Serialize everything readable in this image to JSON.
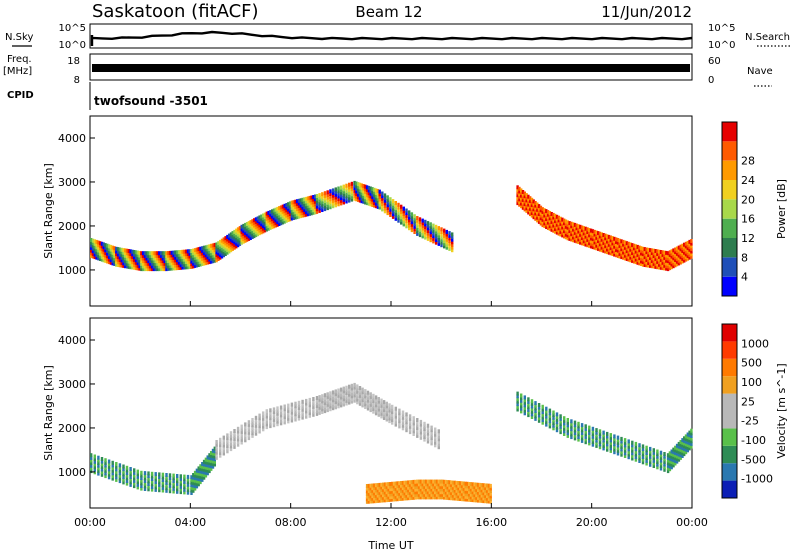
{
  "header": {
    "station": "Saskatoon (fitACF)",
    "beam": "Beam 12",
    "date": "11/Jun/2012"
  },
  "colors": {
    "power_scale": [
      "#0000ff",
      "#1f4fb8",
      "#2e7d4f",
      "#4fae50",
      "#a8d84a",
      "#f0d020",
      "#ff9a00",
      "#ff5a00",
      "#e60000"
    ],
    "velocity_scale": [
      "#0c1fb5",
      "#2a78b0",
      "#2e8c55",
      "#59c04a",
      "#b8b8b8",
      "#b8b8b8",
      "#f0a020",
      "#ff7a00",
      "#ff3a00",
      "#e00000"
    ]
  },
  "top_panels": {
    "nsky": {
      "label": "N.Sky",
      "left_ticks": [
        "10^5",
        "10^0"
      ],
      "right_ticks": [
        "10^5",
        "10^0"
      ],
      "right_label": "N.Search"
    },
    "freq": {
      "label_line1": "Freq.",
      "label_line2": "[MHz]",
      "left_ticks": [
        "18",
        "8"
      ],
      "right_ticks": [
        "60",
        "0"
      ],
      "right_label": "Nave"
    },
    "cpid": {
      "label": "CPID",
      "value": "twofsound -3501"
    }
  },
  "chart_data": [
    {
      "type": "heatmap",
      "panel": "power",
      "xlabel": "",
      "ylabel": "Slant Range [km]",
      "x_ticks": [
        "00:00",
        "04:00",
        "08:00",
        "12:00",
        "16:00",
        "20:00",
        "00:00"
      ],
      "y_ticks": [
        1000,
        2000,
        3000,
        4000
      ],
      "ylim": [
        180,
        4500
      ],
      "colorbar": {
        "label": "Power [dB]",
        "ticks": [
          4,
          8,
          12,
          16,
          20,
          24,
          28
        ],
        "range": [
          0,
          32
        ]
      },
      "features": [
        {
          "x": [
            0,
            1,
            2,
            3,
            4,
            5
          ],
          "y": [
            1500,
            1300,
            1200,
            1200,
            1250,
            1400
          ],
          "color": "mixed"
        },
        {
          "x": [
            5,
            6,
            7,
            8,
            9,
            10.5,
            11.5,
            13,
            14.5
          ],
          "y": [
            1400,
            1800,
            2100,
            2350,
            2500,
            2800,
            2600,
            2000,
            1600
          ],
          "color": "mixed"
        },
        {
          "x": [
            17,
            18,
            19,
            20,
            21,
            22,
            23,
            24
          ],
          "y": [
            2700,
            2200,
            1900,
            1700,
            1500,
            1300,
            1200,
            1500
          ],
          "color": "red"
        }
      ]
    },
    {
      "type": "heatmap",
      "panel": "velocity",
      "xlabel": "Time UT",
      "ylabel": "Slant Range [km]",
      "x_ticks": [
        "00:00",
        "04:00",
        "08:00",
        "12:00",
        "16:00",
        "20:00",
        "00:00"
      ],
      "y_ticks": [
        1000,
        2000,
        3000,
        4000
      ],
      "ylim": [
        180,
        4500
      ],
      "colorbar": {
        "label": "Velocity [m s^-1]",
        "ticks": [
          "1000",
          "500",
          "100",
          "25",
          "-25",
          "-100",
          "-500",
          "-1000"
        ]
      },
      "features": [
        {
          "x": [
            0,
            2,
            4,
            5
          ],
          "y": [
            1200,
            800,
            700,
            1400
          ],
          "color": "green"
        },
        {
          "x": [
            5,
            7,
            9,
            10.5,
            12,
            14
          ],
          "y": [
            1500,
            2200,
            2500,
            2800,
            2300,
            1700
          ],
          "color": "grey"
        },
        {
          "x": [
            11,
            12,
            13,
            14,
            15,
            16
          ],
          "y": [
            500,
            550,
            600,
            600,
            550,
            500
          ],
          "color": "orange"
        },
        {
          "x": [
            17,
            19,
            21,
            23,
            24
          ],
          "y": [
            2600,
            2000,
            1600,
            1200,
            1800
          ],
          "color": "green"
        }
      ]
    }
  ]
}
